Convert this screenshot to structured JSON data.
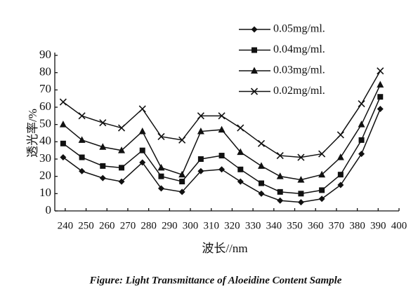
{
  "chart_data": {
    "type": "line",
    "caption": "Figure: Light Transmittance of Aloeidine Content Sample",
    "x_label": "波长//nm",
    "y_label": "透光率/%",
    "x": [
      239,
      248,
      258,
      267,
      277,
      286,
      296,
      305,
      315,
      324,
      334,
      343,
      353,
      363,
      372,
      382,
      391
    ],
    "series": [
      {
        "name": "0.05mg/ml.",
        "color": "#111111",
        "marker": "diamond",
        "values": [
          31,
          23,
          19,
          17,
          28,
          13,
          11,
          23,
          24,
          17,
          10,
          6,
          5,
          7,
          15,
          33,
          59
        ]
      },
      {
        "name": "0.04mg/ml.",
        "color": "#111111",
        "marker": "square",
        "values": [
          39,
          31,
          26,
          25,
          35,
          20,
          17,
          30,
          32,
          24,
          16,
          11,
          10,
          12,
          21,
          41,
          66
        ]
      },
      {
        "name": "0.03mg/ml.",
        "color": "#111111",
        "marker": "triangle",
        "values": [
          50,
          41,
          37,
          35,
          46,
          25,
          21,
          46,
          47,
          34,
          26,
          20,
          18,
          21,
          31,
          50,
          73
        ]
      },
      {
        "name": "0.02mg/ml.",
        "color": "#111111",
        "marker": "x",
        "values": [
          63,
          55,
          51,
          48,
          59,
          43,
          41,
          55,
          55,
          48,
          39,
          32,
          31,
          33,
          44,
          62,
          81
        ]
      }
    ],
    "xlim": [
      235,
      400
    ],
    "xticks": [
      240,
      250,
      260,
      270,
      280,
      290,
      300,
      310,
      320,
      330,
      340,
      350,
      360,
      370,
      380,
      390,
      400
    ],
    "ylim": [
      0,
      90
    ],
    "yticks": [
      0,
      10,
      20,
      30,
      40,
      50,
      60,
      70,
      80,
      90
    ],
    "grid": false,
    "legend": "upper right"
  }
}
